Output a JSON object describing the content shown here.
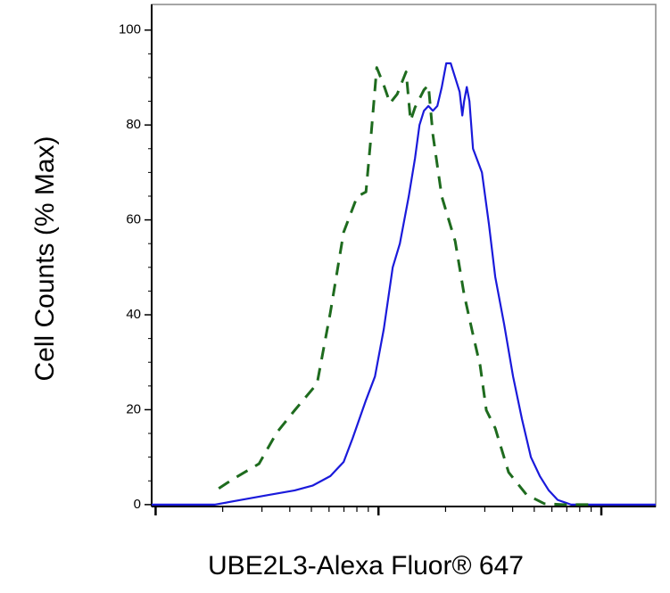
{
  "chart_data": {
    "type": "line",
    "x_label": "UBE2L3-Alexa Fluor® 647",
    "y_label": "Cell Counts (% Max)",
    "x_log": true,
    "xlim": [
      96,
      17540
    ],
    "xticks": [
      100,
      1000,
      10000
    ],
    "ylim": [
      -0.4,
      105.4
    ],
    "yticks": [
      0,
      20,
      40,
      60,
      80,
      100
    ],
    "series": [
      {
        "color": "#1a1adb",
        "dash": false,
        "x": [
          96,
          127,
          184,
          242,
          319,
          421,
          506,
          608,
          698,
          766,
          879,
          964,
          1057,
          1159,
          1247,
          1368,
          1459,
          1528,
          1600,
          1675,
          1754,
          1837,
          1923,
          2014,
          2109,
          2208,
          2312,
          2377,
          2421,
          2489,
          2559,
          2655,
          2911,
          3133,
          3342,
          3664,
          4018,
          4406,
          4831,
          5297,
          5808,
          6368,
          7311,
          8790,
          12706,
          17539
        ],
        "values": [
          0,
          0,
          0,
          1,
          2,
          3,
          4,
          6,
          9,
          14,
          22,
          27,
          37,
          50,
          55,
          65,
          73,
          80,
          83,
          84,
          83,
          84,
          88,
          93,
          93,
          90,
          87,
          82,
          85,
          88,
          85,
          75,
          70,
          59,
          48,
          38,
          27,
          18,
          10,
          6,
          3,
          1,
          0,
          0,
          0,
          0
        ]
      },
      {
        "color": "#1e6b1e",
        "dash": true,
        "x": [
          192,
          221,
          291,
          350,
          421,
          530,
          608,
          698,
          802,
          879,
          920,
          982,
          1057,
          1127,
          1213,
          1330,
          1393,
          1459,
          1600,
          1675,
          1754,
          1923,
          2208,
          2421,
          2655,
          2858,
          3048,
          3342,
          3837,
          4613,
          5546,
          6668,
          8790
        ],
        "values": [
          3.4,
          5.3,
          8.6,
          15.2,
          19.9,
          25.5,
          40.5,
          57.4,
          64.9,
          65.9,
          76.2,
          92.1,
          88.4,
          84.6,
          86.5,
          91.2,
          80.9,
          83.7,
          87.4,
          88.4,
          78,
          64.9,
          55.5,
          44.3,
          35.8,
          29.3,
          19.9,
          16.1,
          6.8,
          2.1,
          0.2,
          0,
          0
        ]
      }
    ]
  }
}
